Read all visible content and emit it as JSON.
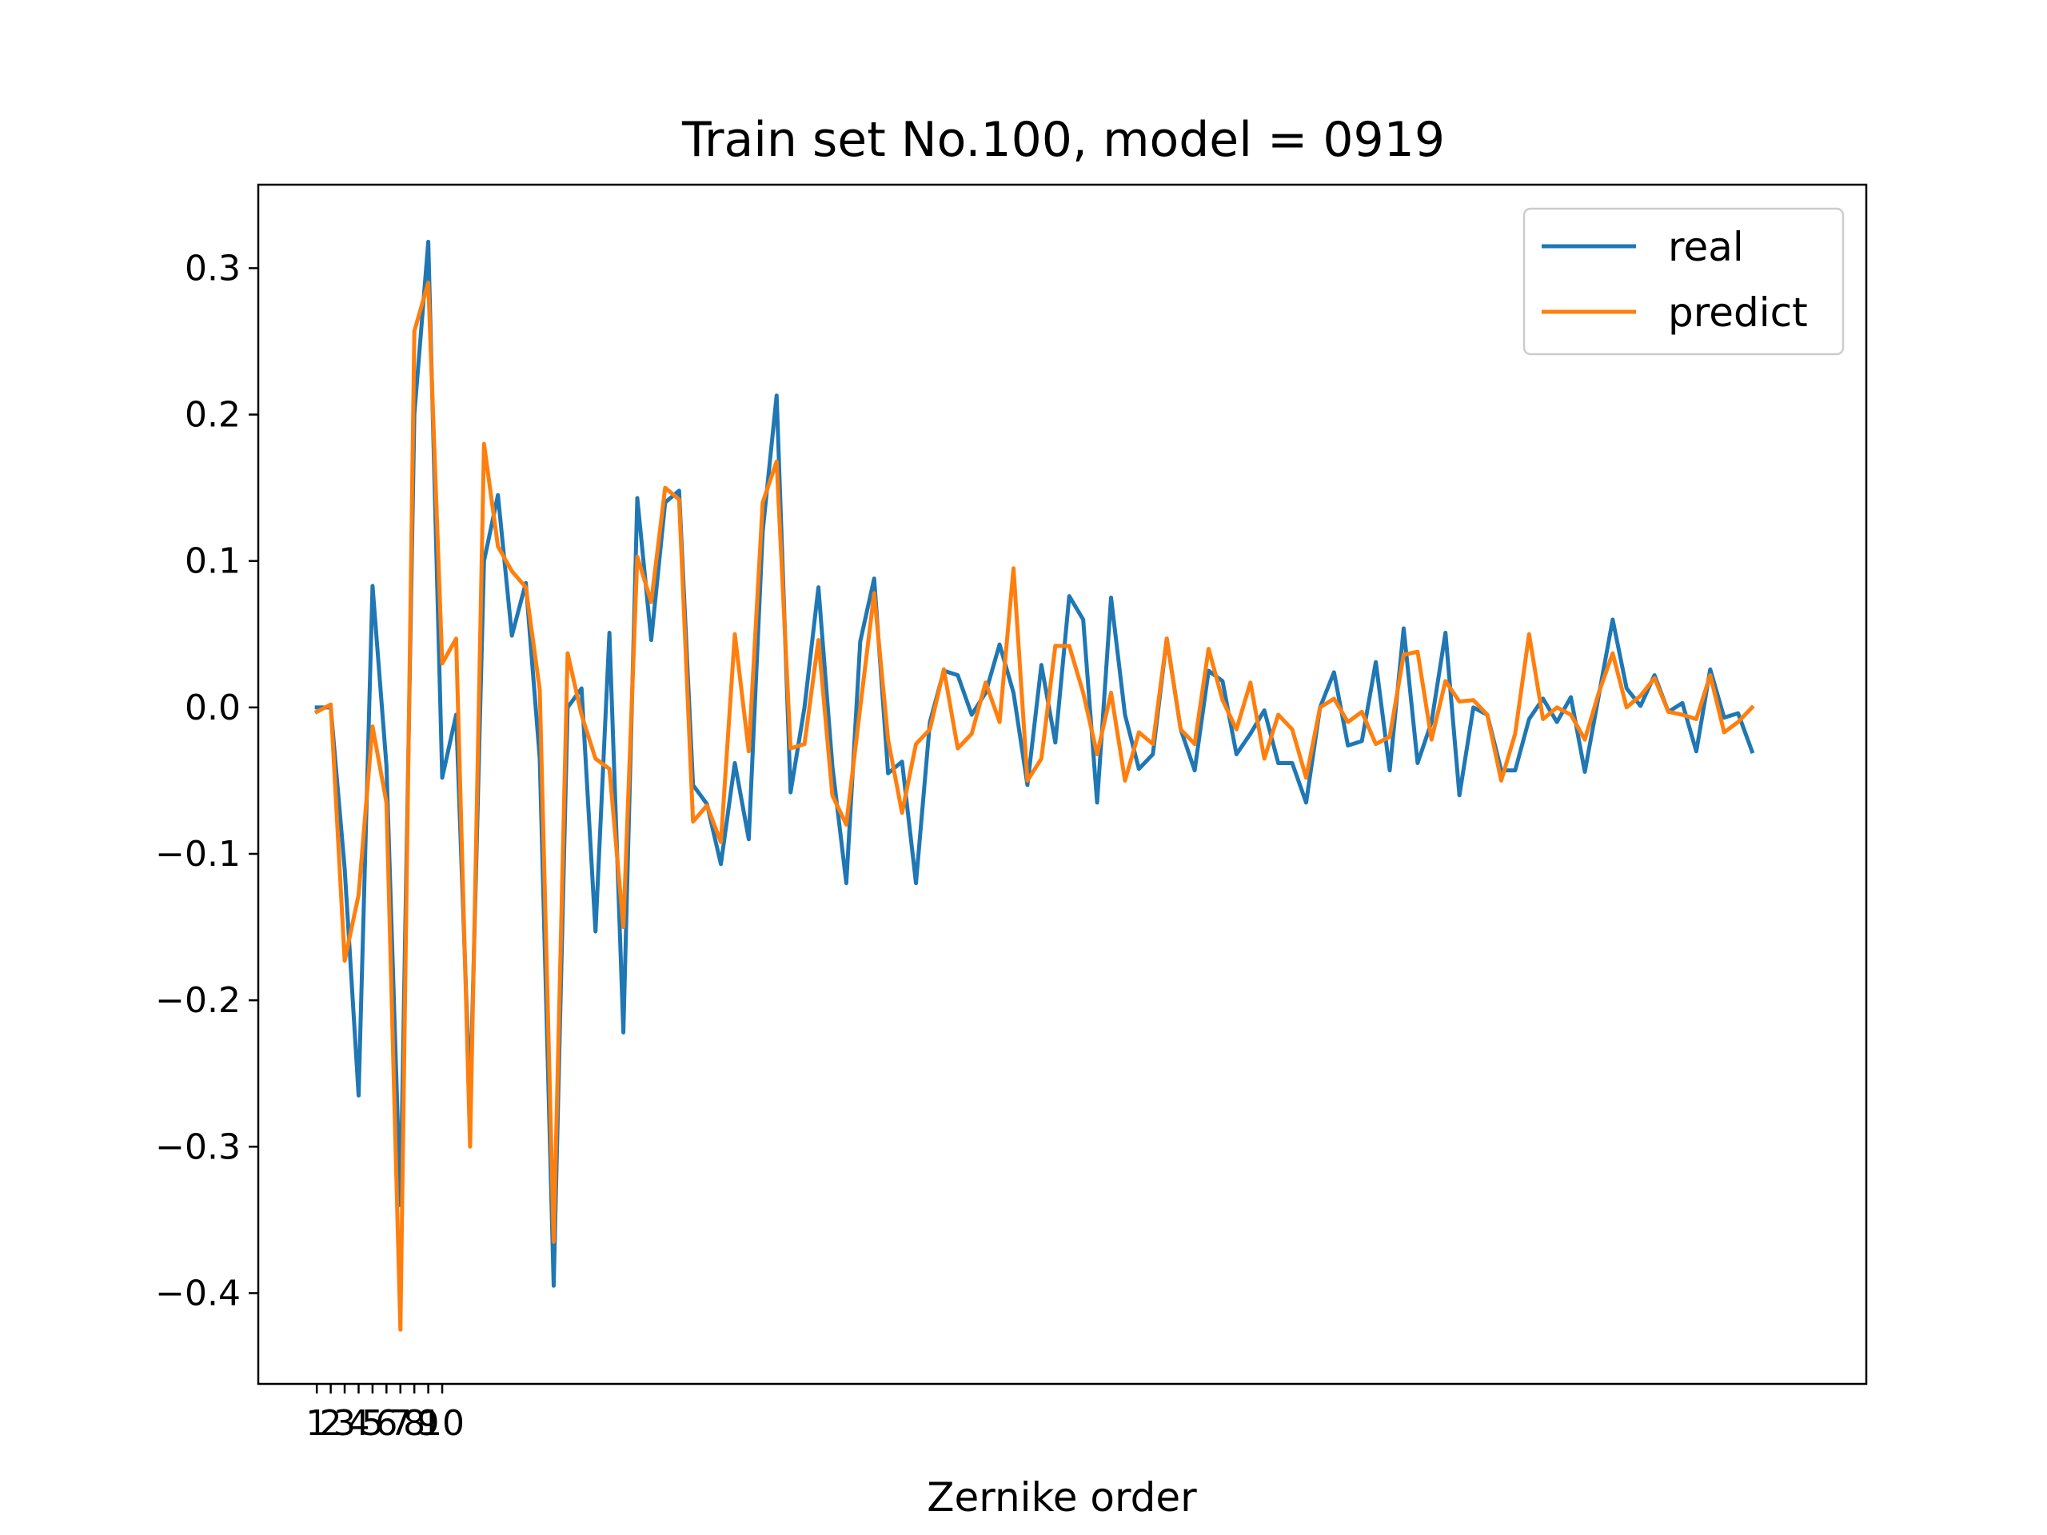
{
  "chart_data": {
    "type": "line",
    "title": "Train set No.100, model = 0919",
    "xlabel": "Zernike order",
    "ylabel": "",
    "xticks": [
      1,
      2,
      3,
      4,
      5,
      6,
      7,
      8,
      9,
      10
    ],
    "xtick_labels": [
      "1",
      "2",
      "3",
      "4",
      "5",
      "6",
      "7",
      "8",
      "9",
      "10"
    ],
    "yticks": [
      -0.4,
      -0.3,
      -0.2,
      -0.1,
      0.0,
      0.1,
      0.2,
      0.3
    ],
    "ytick_labels": [
      "−0.4",
      "−0.3",
      "−0.2",
      "−0.1",
      "0.0",
      "0.1",
      "0.2",
      "0.3"
    ],
    "xlim": [
      -4.2,
      111.2
    ],
    "ylim": [
      -0.462,
      0.357
    ],
    "grid": false,
    "legend_position": "upper right",
    "series": [
      {
        "name": "real",
        "color": "#1f77b4",
        "values": [
          0.0,
          0.0,
          -0.11,
          -0.265,
          0.083,
          -0.04,
          -0.34,
          0.2,
          0.318,
          -0.048,
          -0.005,
          -0.27,
          0.1,
          0.145,
          0.049,
          0.085,
          -0.035,
          -0.395,
          0.0,
          0.013,
          -0.153,
          0.051,
          -0.222,
          0.143,
          0.046,
          0.14,
          0.148,
          -0.053,
          -0.066,
          -0.107,
          -0.038,
          -0.09,
          0.12,
          0.213,
          -0.058,
          0.0,
          0.082,
          -0.04,
          -0.12,
          0.045,
          0.088,
          -0.045,
          -0.037,
          -0.12,
          -0.01,
          0.025,
          0.022,
          -0.005,
          0.01,
          0.043,
          0.01,
          -0.053,
          0.029,
          -0.024,
          0.076,
          0.06,
          -0.065,
          0.075,
          -0.005,
          -0.042,
          -0.032,
          0.047,
          -0.015,
          -0.043,
          0.025,
          0.018,
          -0.032,
          -0.018,
          -0.002,
          -0.038,
          -0.038,
          -0.065,
          0.0,
          0.024,
          -0.026,
          -0.023,
          0.031,
          -0.043,
          0.054,
          -0.038,
          -0.01,
          0.051,
          -0.06,
          0.0,
          -0.005,
          -0.043,
          -0.043,
          -0.008,
          0.006,
          -0.01,
          0.007,
          -0.044,
          0.008,
          0.06,
          0.013,
          0.001,
          0.022,
          -0.003,
          0.003,
          -0.03,
          0.026,
          -0.007,
          -0.004,
          -0.03
        ]
      },
      {
        "name": "predict",
        "color": "#ff7f0e",
        "values": [
          -0.003,
          0.002,
          -0.173,
          -0.128,
          -0.013,
          -0.065,
          -0.425,
          0.257,
          0.29,
          0.03,
          0.047,
          -0.3,
          0.18,
          0.11,
          0.093,
          0.082,
          0.012,
          -0.365,
          0.037,
          -0.005,
          -0.035,
          -0.042,
          -0.15,
          0.103,
          0.072,
          0.15,
          0.142,
          -0.078,
          -0.067,
          -0.092,
          0.05,
          -0.03,
          0.14,
          0.168,
          -0.028,
          -0.025,
          0.046,
          -0.06,
          -0.08,
          0.0,
          0.078,
          -0.022,
          -0.072,
          -0.025,
          -0.015,
          0.026,
          -0.028,
          -0.018,
          0.017,
          -0.01,
          0.095,
          -0.05,
          -0.035,
          0.042,
          0.042,
          0.01,
          -0.032,
          0.01,
          -0.05,
          -0.017,
          -0.025,
          0.047,
          -0.015,
          -0.025,
          0.04,
          0.005,
          -0.015,
          0.017,
          -0.035,
          -0.005,
          -0.015,
          -0.048,
          0.0,
          0.006,
          -0.01,
          -0.003,
          -0.025,
          -0.02,
          0.036,
          0.038,
          -0.022,
          0.018,
          0.004,
          0.005,
          -0.005,
          -0.05,
          -0.018,
          0.05,
          -0.008,
          0.0,
          -0.005,
          -0.022,
          0.01,
          0.037,
          0.0,
          0.008,
          0.02,
          -0.003,
          -0.005,
          -0.008,
          0.022,
          -0.017,
          -0.01,
          0.0
        ]
      }
    ]
  }
}
